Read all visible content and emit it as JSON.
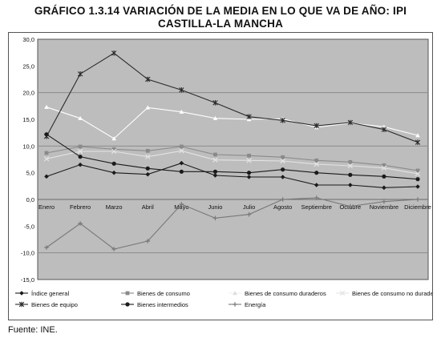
{
  "title_line1": "GRÁFICO 1.3.14 VARIACIÓN DE LA MEDIA EN LO QUE VA DE AÑO: IPI",
  "title_line2": "CASTILLA-LA MANCHA",
  "source": "Fuente: INE.",
  "chart_data": {
    "type": "line",
    "categories": [
      "Enero",
      "Febrero",
      "Marzo",
      "Abril",
      "Mayo",
      "Junio",
      "Julio",
      "Agosto",
      "Septiembre",
      "Octubre",
      "Noviembre",
      "Diciembre"
    ],
    "ylim": [
      -15,
      30
    ],
    "yticks": [
      30,
      25,
      20,
      15,
      10,
      5,
      0,
      -5,
      -10,
      -15
    ],
    "ytick_labels": [
      "30,0",
      "25,0",
      "20,0",
      "15,0",
      "10,0",
      "5,0",
      "0,0",
      "-5,0",
      "-10,0",
      "-15,0"
    ],
    "grid": "horizontal at 20, 10, 0 and -10",
    "legend_position": "bottom",
    "plot_background": "#bdbdbd",
    "series": [
      {
        "name": "Índice general",
        "color": "#1a1a1a",
        "marker": "diamond",
        "values": [
          4.3,
          6.5,
          5.0,
          4.7,
          6.8,
          4.5,
          4.2,
          4.2,
          2.7,
          2.7,
          2.2,
          2.4
        ]
      },
      {
        "name": "Bienes de consumo",
        "color": "#8a8a8a",
        "marker": "square",
        "values": [
          8.7,
          9.9,
          9.4,
          9.1,
          9.9,
          8.4,
          8.2,
          7.9,
          7.3,
          7.0,
          6.4,
          5.4
        ]
      },
      {
        "name": "Bienes de consumo duraderos",
        "color": "#ffffff",
        "marker": "triangle",
        "values": [
          17.3,
          15.2,
          11.4,
          17.2,
          16.4,
          15.2,
          15.0,
          15.1,
          13.5,
          14.3,
          13.6,
          12.0
        ]
      },
      {
        "name": "Bienes de consumo no duraderos",
        "color": "#e4e4e4",
        "marker": "x",
        "values": [
          7.6,
          9.0,
          9.0,
          8.0,
          9.1,
          7.4,
          7.3,
          7.2,
          6.6,
          6.3,
          5.9,
          4.8
        ]
      },
      {
        "name": "Bienes de equipo",
        "color": "#2a2a2a",
        "marker": "star",
        "values": [
          11.8,
          23.5,
          27.4,
          22.5,
          20.5,
          18.1,
          15.5,
          14.8,
          13.8,
          14.4,
          13.1,
          10.7
        ]
      },
      {
        "name": "Bienes intermedios",
        "color": "#1a1a1a",
        "marker": "circle",
        "values": [
          12.2,
          8.0,
          6.7,
          5.8,
          5.2,
          5.2,
          5.0,
          5.6,
          5.0,
          4.6,
          4.3,
          3.8
        ]
      },
      {
        "name": "Energía",
        "color": "#787878",
        "marker": "plus",
        "values": [
          -9.0,
          -4.5,
          -9.3,
          -7.8,
          -0.9,
          -3.5,
          -2.8,
          0.0,
          0.3,
          -1.3,
          -0.4,
          0.0
        ]
      }
    ]
  }
}
